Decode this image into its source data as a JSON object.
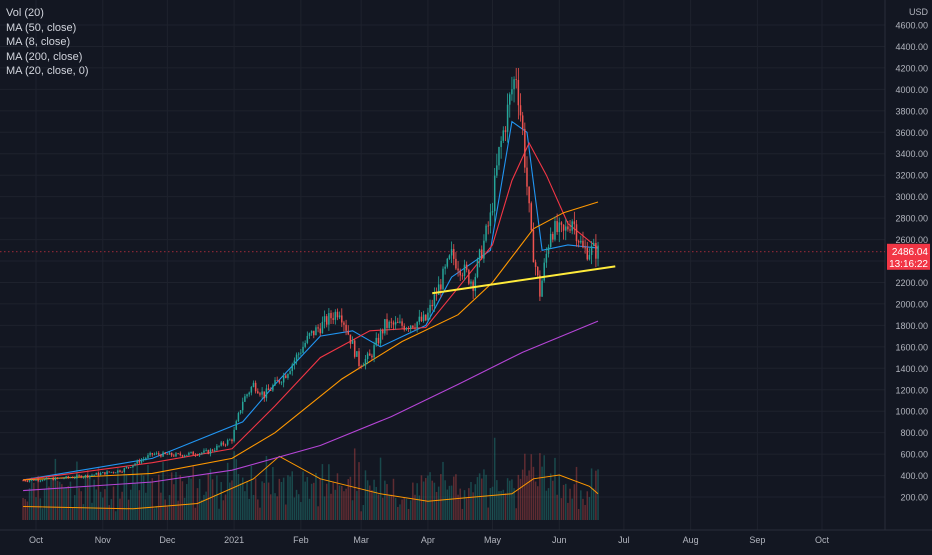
{
  "legend": [
    {
      "label": "Vol (20)"
    },
    {
      "label": "MA (50, close)"
    },
    {
      "label": "MA (8, close)"
    },
    {
      "label": "MA (200, close)"
    },
    {
      "label": "MA (20, close, 0)"
    }
  ],
  "price_axis": {
    "unit_label": "USD",
    "current_price": "2486.04",
    "countdown": "13:16:22"
  },
  "colors": {
    "background": "#131722",
    "grid": "#1e222d",
    "up": "#26a69a",
    "down": "#ef5350",
    "ma8": "#2196f3",
    "ma20": "#f23645",
    "ma50": "#ff9800",
    "ma200": "#b545d6",
    "trendline": "#ffeb3b",
    "vol_ma": "#ff9800",
    "price_label_bg": "#f23645"
  },
  "chart_data": {
    "type": "candlestick",
    "ylim": [
      0,
      4600
    ],
    "y_ticks": [
      "4600.00",
      "4400.00",
      "4200.00",
      "4000.00",
      "3800.00",
      "3600.00",
      "3400.00",
      "3200.00",
      "3000.00",
      "2800.00",
      "2600.00",
      "2400.00",
      "2200.00",
      "2000.00",
      "1800.00",
      "1600.00",
      "1400.00",
      "1200.00",
      "1000.00",
      "800.00",
      "600.00",
      "400.00",
      "200.00"
    ],
    "x_ticks": [
      "Oct",
      "Nov",
      "Dec",
      "2021",
      "Feb",
      "Mar",
      "Apr",
      "May",
      "Jun",
      "Jul",
      "Aug",
      "Sep",
      "Oct"
    ],
    "x_tick_dates": [
      "2020-10-01",
      "2020-11-01",
      "2020-12-01",
      "2021-01-01",
      "2021-02-01",
      "2021-03-01",
      "2021-04-01",
      "2021-05-01",
      "2021-06-01",
      "2021-07-01",
      "2021-08-01",
      "2021-09-01",
      "2021-10-01"
    ],
    "date_range": [
      "2020-09-25",
      "2021-10-25"
    ],
    "price_keypoints": [
      [
        "2020-09-25",
        355
      ],
      [
        "2020-10-10",
        370
      ],
      [
        "2020-10-25",
        400
      ],
      [
        "2020-11-10",
        450
      ],
      [
        "2020-11-24",
        600
      ],
      [
        "2020-12-05",
        590
      ],
      [
        "2020-12-20",
        620
      ],
      [
        "2020-12-31",
        740
      ],
      [
        "2021-01-05",
        1100
      ],
      [
        "2021-01-10",
        1250
      ],
      [
        "2021-01-15",
        1150
      ],
      [
        "2021-01-25",
        1350
      ],
      [
        "2021-02-05",
        1700
      ],
      [
        "2021-02-19",
        1950
      ],
      [
        "2021-02-28",
        1450
      ],
      [
        "2021-03-05",
        1500
      ],
      [
        "2021-03-12",
        1800
      ],
      [
        "2021-03-20",
        1800
      ],
      [
        "2021-03-31",
        1850
      ],
      [
        "2021-04-05",
        2100
      ],
      [
        "2021-04-12",
        2450
      ],
      [
        "2021-04-22",
        2200
      ],
      [
        "2021-04-30",
        2800
      ],
      [
        "2021-05-04",
        3400
      ],
      [
        "2021-05-10",
        4000
      ],
      [
        "2021-05-12",
        4150
      ],
      [
        "2021-05-15",
        3600
      ],
      [
        "2021-05-19",
        2600
      ],
      [
        "2021-05-23",
        2100
      ],
      [
        "2021-05-28",
        2700
      ],
      [
        "2021-06-03",
        2650
      ],
      [
        "2021-06-07",
        2800
      ],
      [
        "2021-06-12",
        2500
      ],
      [
        "2021-06-17",
        2500
      ],
      [
        "2021-06-19",
        2486
      ]
    ],
    "ma_series": [
      {
        "name": "MA (8, close)",
        "color_key": "ma8",
        "points": [
          [
            "2020-09-25",
            360
          ],
          [
            "2020-11-24",
            560
          ],
          [
            "2021-01-05",
            900
          ],
          [
            "2021-01-20",
            1250
          ],
          [
            "2021-02-10",
            1700
          ],
          [
            "2021-02-25",
            1750
          ],
          [
            "2021-03-10",
            1600
          ],
          [
            "2021-03-31",
            1800
          ],
          [
            "2021-04-12",
            2250
          ],
          [
            "2021-04-30",
            2500
          ],
          [
            "2021-05-10",
            3700
          ],
          [
            "2021-05-17",
            3600
          ],
          [
            "2021-05-24",
            2500
          ],
          [
            "2021-06-05",
            2550
          ],
          [
            "2021-06-19",
            2520
          ]
        ]
      },
      {
        "name": "MA (20, close, 0)",
        "color_key": "ma20",
        "points": [
          [
            "2020-09-25",
            360
          ],
          [
            "2020-11-24",
            520
          ],
          [
            "2020-12-31",
            650
          ],
          [
            "2021-01-20",
            1050
          ],
          [
            "2021-02-10",
            1500
          ],
          [
            "2021-03-05",
            1750
          ],
          [
            "2021-03-31",
            1780
          ],
          [
            "2021-04-15",
            2150
          ],
          [
            "2021-05-01",
            2550
          ],
          [
            "2021-05-10",
            3150
          ],
          [
            "2021-05-18",
            3500
          ],
          [
            "2021-05-26",
            3200
          ],
          [
            "2021-06-05",
            2750
          ],
          [
            "2021-06-19",
            2520
          ]
        ]
      },
      {
        "name": "MA (50, close)",
        "color_key": "ma50",
        "points": [
          [
            "2020-09-25",
            360
          ],
          [
            "2020-11-24",
            420
          ],
          [
            "2020-12-31",
            560
          ],
          [
            "2021-01-20",
            800
          ],
          [
            "2021-02-20",
            1300
          ],
          [
            "2021-03-20",
            1650
          ],
          [
            "2021-04-15",
            1900
          ],
          [
            "2021-05-01",
            2200
          ],
          [
            "2021-05-20",
            2700
          ],
          [
            "2021-06-03",
            2850
          ],
          [
            "2021-06-19",
            2950
          ]
        ]
      },
      {
        "name": "MA (200, close)",
        "color_key": "ma200",
        "points": [
          [
            "2020-09-25",
            260
          ],
          [
            "2020-11-24",
            340
          ],
          [
            "2020-12-31",
            450
          ],
          [
            "2021-02-10",
            680
          ],
          [
            "2021-03-15",
            950
          ],
          [
            "2021-04-15",
            1250
          ],
          [
            "2021-05-15",
            1550
          ],
          [
            "2021-06-19",
            1840
          ]
        ]
      }
    ],
    "trendline": [
      [
        "2021-04-03",
        2100
      ],
      [
        "2021-06-27",
        2350
      ]
    ],
    "volume_ma": [
      [
        "2020-09-25",
        0.18
      ],
      [
        "2020-11-15",
        0.15
      ],
      [
        "2020-12-15",
        0.22
      ],
      [
        "2021-01-10",
        0.55
      ],
      [
        "2021-01-22",
        0.85
      ],
      [
        "2021-02-10",
        0.55
      ],
      [
        "2021-03-10",
        0.35
      ],
      [
        "2021-04-01",
        0.25
      ],
      [
        "2021-04-20",
        0.3
      ],
      [
        "2021-05-10",
        0.35
      ],
      [
        "2021-05-20",
        0.55
      ],
      [
        "2021-06-01",
        0.6
      ],
      [
        "2021-06-15",
        0.45
      ],
      [
        "2021-06-19",
        0.35
      ]
    ]
  }
}
